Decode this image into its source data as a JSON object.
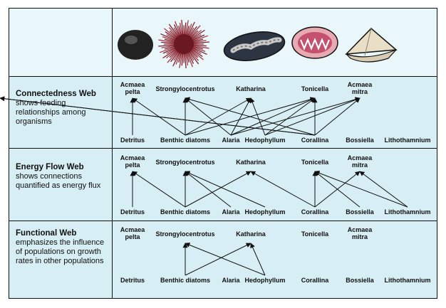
{
  "rows": [
    {
      "title": "Connectedness Web",
      "description": "shows feeding relationships among organisms"
    },
    {
      "title": "Energy Flow Web",
      "description": "shows connections quantified as energy flux"
    },
    {
      "title": "Functional Web",
      "description": "emphasizes the influence of populations on growth rates in other populations"
    }
  ],
  "consumers": [
    "Acmaea pelta",
    "Strongylocentrotus",
    "Katharina",
    "Tonicella",
    "Acmaea mitra"
  ],
  "resources": [
    "Detritus",
    "Benthic diatoms",
    "Alaria",
    "Hedophyllum",
    "Corallina",
    "Bossiella",
    "Lithothamnium"
  ],
  "organism_images": [
    "limpet-shell",
    "sea-urchin",
    "chiton-katharina",
    "chiton-tonicella",
    "limpet-cone"
  ],
  "colors": {
    "panel_bg": "#d7eef5",
    "header_bg": "#e9f6fa",
    "border": "#111111"
  },
  "webs": {
    "connectedness": [
      [
        0,
        0
      ],
      [
        1,
        0
      ],
      [
        1,
        1
      ],
      [
        1,
        2
      ],
      [
        1,
        3
      ],
      [
        2,
        1
      ],
      [
        2,
        2
      ],
      [
        2,
        3
      ],
      [
        2,
        4
      ],
      [
        3,
        2
      ],
      [
        3,
        3
      ],
      [
        3,
        4
      ],
      [
        4,
        4
      ],
      [
        4,
        1
      ],
      [
        4,
        3
      ],
      [
        4,
        5
      ],
      [
        4,
        6
      ]
    ],
    "energy": [
      [
        0,
        0
      ],
      [
        1,
        0
      ],
      [
        1,
        1
      ],
      [
        1,
        2
      ],
      [
        2,
        1
      ],
      [
        3,
        1
      ],
      [
        4,
        2
      ],
      [
        4,
        3
      ],
      [
        4,
        4
      ],
      [
        5,
        3
      ],
      [
        6,
        3
      ],
      [
        6,
        4
      ]
    ],
    "functional": [
      [
        1,
        1
      ],
      [
        1,
        2
      ],
      [
        3,
        1
      ],
      [
        3,
        2
      ]
    ]
  }
}
